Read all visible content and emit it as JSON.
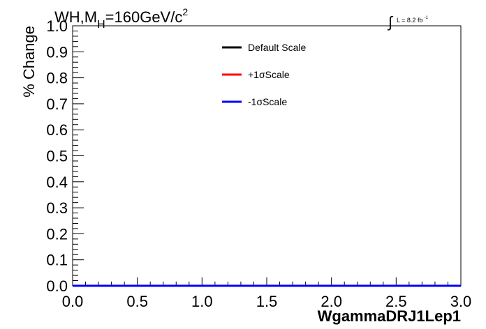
{
  "chart_data": {
    "type": "line",
    "title": {
      "prefix": "WH,M",
      "subscript": "H",
      "main": "=160GeV/c",
      "superscript": "2"
    },
    "luminosity": {
      "integral_symbol": "∫",
      "text": "L = 8.2 fb",
      "superscript": "-1"
    },
    "xlabel": "WgammaDRJ1Lep1",
    "ylabel": "% Change",
    "xlim": [
      0.0,
      3.0
    ],
    "ylim": [
      0.0,
      1.0
    ],
    "x_ticks": [
      "0.0",
      "0.5",
      "1.0",
      "1.5",
      "2.0",
      "2.5",
      "3.0"
    ],
    "y_ticks": [
      "0.0",
      "0.1",
      "0.2",
      "0.3",
      "0.4",
      "0.5",
      "0.6",
      "0.7",
      "0.8",
      "0.9",
      "1.0"
    ],
    "series": [
      {
        "name": "Default Scale",
        "color": "#000000",
        "x": [
          0.0,
          3.0
        ],
        "y": [
          0.0,
          0.0
        ]
      },
      {
        "name": "+1σScale",
        "color": "#ff0000",
        "x": [
          0.0,
          3.0
        ],
        "y": [
          0.0,
          0.0
        ]
      },
      {
        "name": "-1σScale",
        "color": "#0000ff",
        "x": [
          0.0,
          3.0
        ],
        "y": [
          0.0,
          0.0
        ]
      }
    ],
    "legend_position": "top-right",
    "grid": false
  }
}
